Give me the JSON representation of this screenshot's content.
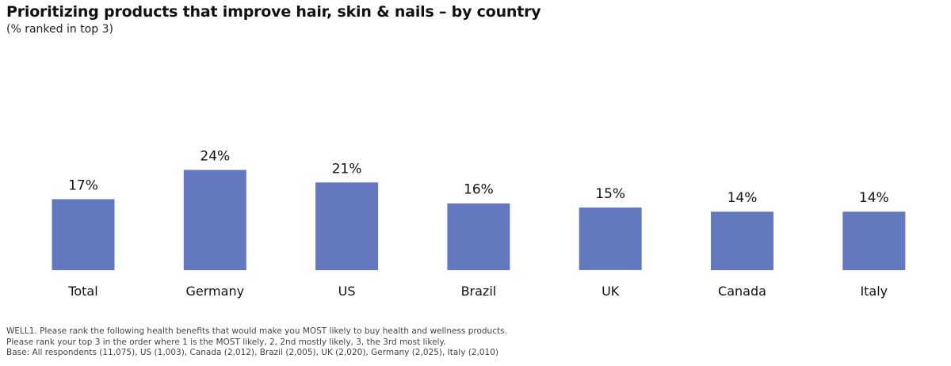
{
  "title": "Prioritizing products that improve hair, skin & nails – by country",
  "subtitle": "(% ranked in top 3)",
  "chart_data": {
    "type": "bar",
    "categories": [
      "Total",
      "Germany",
      "US",
      "Brazil",
      "UK",
      "Canada",
      "Italy"
    ],
    "values": [
      17,
      24,
      21,
      16,
      15,
      14,
      14
    ],
    "value_labels": [
      "17%",
      "24%",
      "21%",
      "16%",
      "15%",
      "14%",
      "14%"
    ],
    "unit": "%",
    "bar_color": "#6478c0",
    "ylim": [
      0,
      30
    ],
    "grid": false,
    "legend": "none"
  },
  "footnotes": {
    "line1": "WELL1. Please rank the following health benefits that would make you MOST likely to buy health and wellness products.",
    "line2": "Please rank your top 3 in the order where 1 is the MOST likely, 2, 2nd mostly likely, 3, the 3rd most likely.",
    "line3": "Base: All respondents (11,075), US (1,003), Canada (2,012), Brazil (2,005), UK (2,020), Germany (2,025), Italy (2,010)"
  }
}
